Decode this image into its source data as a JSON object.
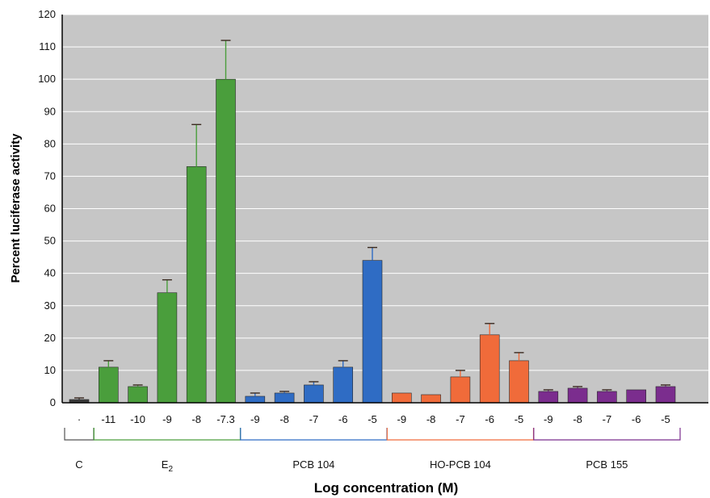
{
  "chart_data": {
    "type": "bar",
    "ylabel": "Percent luciferase activity",
    "xlabel": "Log concentration (M)",
    "ylim": [
      0,
      120
    ],
    "yticks": [
      0,
      10,
      20,
      30,
      40,
      50,
      60,
      70,
      80,
      90,
      100,
      110,
      120
    ],
    "grid": true,
    "groups": [
      {
        "label": "C",
        "color": "#3a3a3a",
        "bracket_color": "#555555",
        "bars": [
          {
            "x": "·",
            "value": 1,
            "error": 0.5
          }
        ]
      },
      {
        "label": "E2",
        "label_base": "E",
        "label_sub": "2",
        "color": "#4a9e3c",
        "bracket_color": "#4a9e3c",
        "bars": [
          {
            "x": "-11",
            "value": 11,
            "error": 2
          },
          {
            "x": "-10",
            "value": 5,
            "error": 0.5
          },
          {
            "x": "-9",
            "value": 34,
            "error": 4
          },
          {
            "x": "-8",
            "value": 73,
            "error": 13
          },
          {
            "x": "-7.3",
            "value": 100,
            "error": 12
          }
        ]
      },
      {
        "label": "PCB 104",
        "color": "#2f6cc4",
        "bracket_color": "#2f6cc4",
        "bars": [
          {
            "x": "-9",
            "value": 2,
            "error": 1
          },
          {
            "x": "-8",
            "value": 3,
            "error": 0.5
          },
          {
            "x": "-7",
            "value": 5.5,
            "error": 1
          },
          {
            "x": "-6",
            "value": 11,
            "error": 2
          },
          {
            "x": "-5",
            "value": 44,
            "error": 4
          }
        ]
      },
      {
        "label": "HO-PCB 104",
        "color": "#f06b3a",
        "bracket_color": "#f06b3a",
        "bars": [
          {
            "x": "-9",
            "value": 3,
            "error": 0
          },
          {
            "x": "-8",
            "value": 2.5,
            "error": 0
          },
          {
            "x": "-7",
            "value": 8,
            "error": 2
          },
          {
            "x": "-6",
            "value": 21,
            "error": 3.5
          },
          {
            "x": "-5",
            "value": 13,
            "error": 2.5
          }
        ]
      },
      {
        "label": "PCB 155",
        "color": "#7b2d8e",
        "bracket_color": "#7b2d8e",
        "bars": [
          {
            "x": "-9",
            "value": 3.5,
            "error": 0.5
          },
          {
            "x": "-8",
            "value": 4.5,
            "error": 0.5
          },
          {
            "x": "-7",
            "value": 3.5,
            "error": 0.5
          },
          {
            "x": "-6",
            "value": 4,
            "error": 0
          },
          {
            "x": "-5",
            "value": 5,
            "error": 0.5
          }
        ]
      }
    ]
  }
}
